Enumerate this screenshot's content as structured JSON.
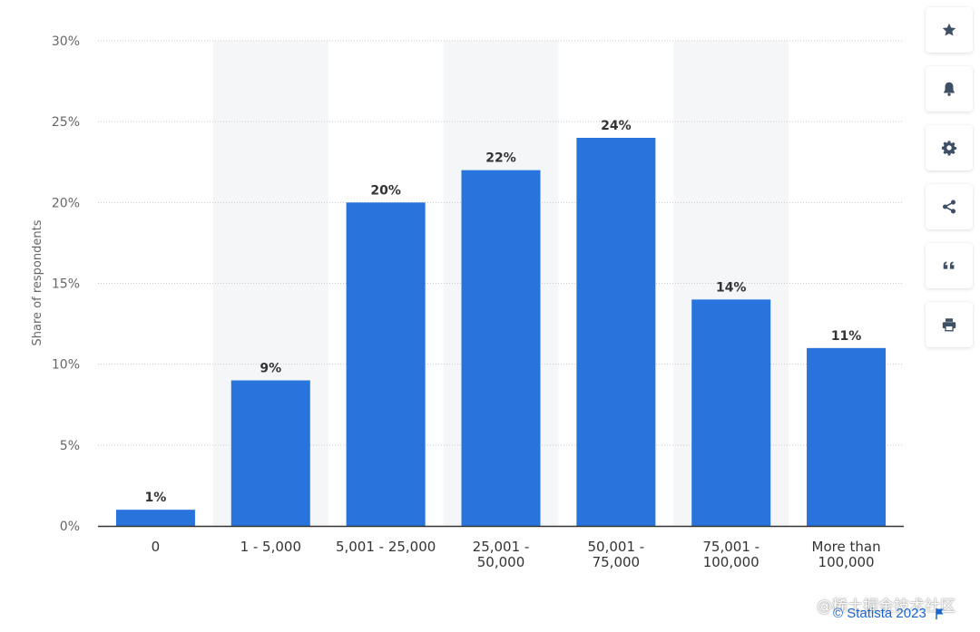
{
  "chart_data": {
    "type": "bar",
    "categories": [
      "0",
      "1 - 5,000",
      "5,001 - 25,000",
      "25,001 -\n50,000",
      "50,001 -\n75,000",
      "75,001 -\n100,000",
      "More than\n100,000"
    ],
    "values": [
      1,
      9,
      20,
      22,
      24,
      14,
      11
    ],
    "data_labels": [
      "1%",
      "9%",
      "20%",
      "22%",
      "24%",
      "14%",
      "11%"
    ],
    "ylabel": "Share of respondents",
    "yticks": [
      "0%",
      "5%",
      "10%",
      "15%",
      "20%",
      "25%",
      "30%"
    ],
    "ylim": [
      0,
      30
    ],
    "grid": true,
    "bar_color": "#2874dc"
  },
  "toolbar": {
    "buttons": [
      {
        "name": "favorite-button",
        "icon": "star-icon"
      },
      {
        "name": "notification-button",
        "icon": "bell-icon"
      },
      {
        "name": "settings-button",
        "icon": "gear-icon"
      },
      {
        "name": "share-button",
        "icon": "share-icon"
      },
      {
        "name": "cite-button",
        "icon": "quote-icon"
      },
      {
        "name": "print-button",
        "icon": "print-icon"
      }
    ],
    "icon_color": "#3f5066"
  },
  "watermark": "@稀土掘金技术社区",
  "credit": "© Statista 2023"
}
